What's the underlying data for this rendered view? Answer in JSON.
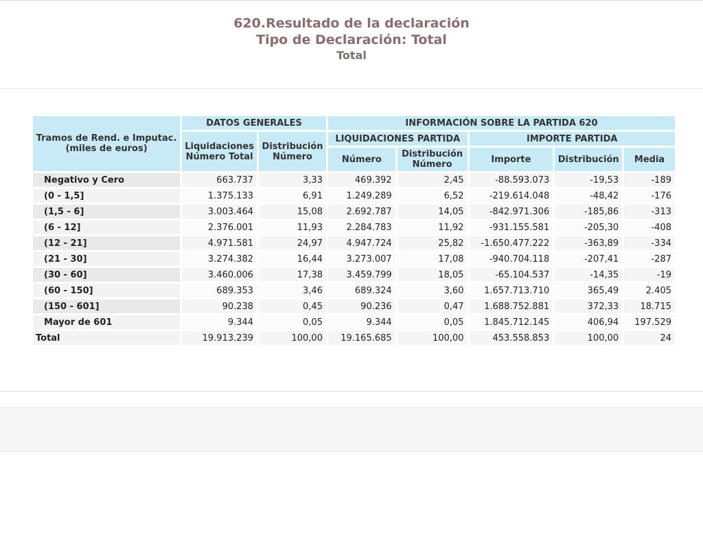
{
  "header": {
    "title": "620.Resultado de la declaración",
    "subtitle": "Tipo de Declaración: Total",
    "subtitle2": "Total"
  },
  "table": {
    "row_header_label": "Tramos de Rend. e Imputac. (miles de euros)",
    "group1": "DATOS GENERALES",
    "group2": "INFORMACIÓN SOBRE LA PARTIDA 620",
    "group2a": "LIQUIDACIONES PARTIDA",
    "group2b": "IMPORTE PARTIDA",
    "columns": [
      "Liquidaciones Número Total",
      "Distribución Número",
      "Número",
      "Distribución Número",
      "Importe",
      "Distribución",
      "Media"
    ],
    "rows": [
      {
        "label": "Negativo y Cero",
        "values": [
          "663.737",
          "3,33",
          "469.392",
          "2,45",
          "-88.593.073",
          "-19,53",
          "-189"
        ]
      },
      {
        "label": "(0 - 1,5]",
        "values": [
          "1.375.133",
          "6,91",
          "1.249.289",
          "6,52",
          "-219.614.048",
          "-48,42",
          "-176"
        ]
      },
      {
        "label": "(1,5 - 6]",
        "values": [
          "3.003.464",
          "15,08",
          "2.692.787",
          "14,05",
          "-842.971.306",
          "-185,86",
          "-313"
        ]
      },
      {
        "label": "(6 - 12]",
        "values": [
          "2.376.001",
          "11,93",
          "2.284.783",
          "11,92",
          "-931.155.581",
          "-205,30",
          "-408"
        ]
      },
      {
        "label": "(12 - 21]",
        "values": [
          "4.971.581",
          "24,97",
          "4.947.724",
          "25,82",
          "-1.650.477.222",
          "-363,89",
          "-334"
        ]
      },
      {
        "label": "(21 - 30]",
        "values": [
          "3.274.382",
          "16,44",
          "3.273.007",
          "17,08",
          "-940.704.118",
          "-207,41",
          "-287"
        ]
      },
      {
        "label": "(30 - 60]",
        "values": [
          "3.460.006",
          "17,38",
          "3.459.799",
          "18,05",
          "-65.104.537",
          "-14,35",
          "-19"
        ]
      },
      {
        "label": "(60 - 150]",
        "values": [
          "689.353",
          "3,46",
          "689.324",
          "3,60",
          "1.657.713.710",
          "365,49",
          "2.405"
        ]
      },
      {
        "label": "(150 - 601]",
        "values": [
          "90.238",
          "0,45",
          "90.236",
          "0,47",
          "1.688.752.881",
          "372,33",
          "18.715"
        ]
      },
      {
        "label": "Mayor de 601",
        "values": [
          "9.344",
          "0,05",
          "9.344",
          "0,05",
          "1.845.712.145",
          "406,94",
          "197.529"
        ]
      }
    ],
    "total": {
      "label": "Total",
      "values": [
        "19.913.239",
        "100,00",
        "19.165.685",
        "100,00",
        "453.558.853",
        "100,00",
        "24"
      ]
    }
  }
}
